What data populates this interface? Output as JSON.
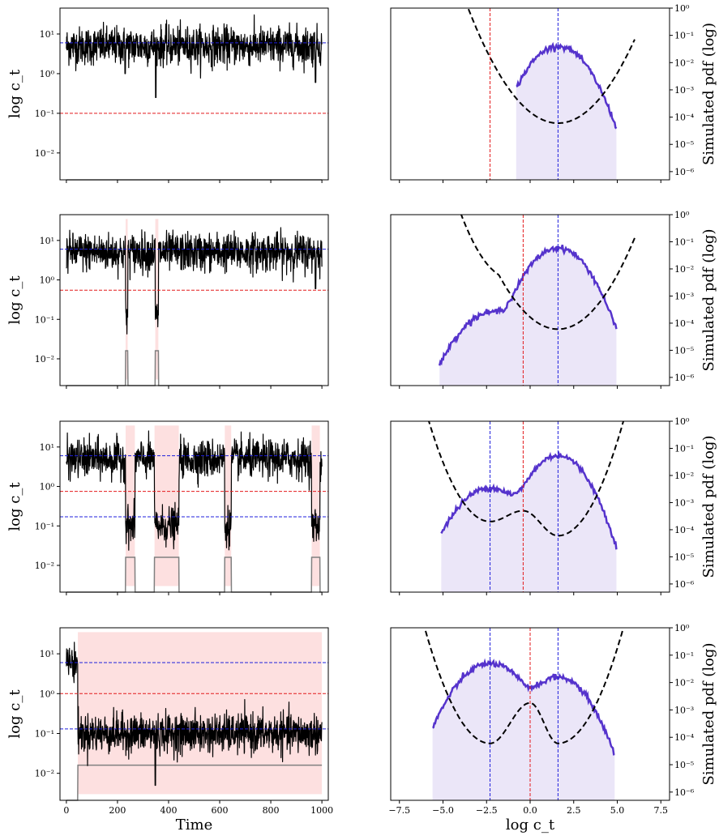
{
  "chart_data": {
    "type": "figure-grid",
    "left_column": {
      "type": "line",
      "ylabel": "log  c_t",
      "xlabel": "Time",
      "xlim": [
        -25,
        1025
      ],
      "x_ticks": [
        0,
        200,
        400,
        600,
        800,
        1000
      ],
      "y_scale": "log",
      "ylim": [
        0.0021,
        45
      ],
      "y_ticks": [
        0.01,
        0.1,
        1,
        10
      ],
      "y_tick_labels": [
        "10⁻²",
        "10⁻¹",
        "10⁰",
        "10¹"
      ],
      "series_colors": {
        "trajectory": "#000000",
        "regime_indicator": "#808080",
        "threshold": "#e41a1c",
        "attractors": "#1f1fdc",
        "shaded": "#fde0e0"
      }
    },
    "right_column": {
      "type": "line",
      "ylabel": "Simulated pdf (log)",
      "xlabel": "log  c_t",
      "xlim": [
        -8,
        8
      ],
      "x_ticks": [
        -7.5,
        -5.0,
        -2.5,
        0.0,
        2.5,
        5.0,
        7.5
      ],
      "x_tick_labels": [
        "−7.5",
        "−5.0",
        "−2.5",
        "0.0",
        "2.5",
        "5.0",
        "7.5"
      ],
      "y_scale": "log",
      "ylim": [
        5e-07,
        1
      ],
      "y_ticks": [
        1e-06,
        1e-05,
        0.0001,
        0.001,
        0.01,
        0.1,
        1
      ],
      "y_tick_labels": [
        "10⁻⁶",
        "10⁻⁵",
        "10⁻⁴",
        "10⁻³",
        "10⁻²",
        "10⁻¹",
        "10⁰"
      ],
      "series_colors": {
        "pdf": "#5533cc",
        "pdf_fill": "#ebe6f8",
        "potential": "#000000",
        "threshold": "#e41a1c",
        "attractors": "#1f1fdc"
      }
    },
    "rows": [
      {
        "left": {
          "threshold": 0.1,
          "attractors": [
            6.0
          ],
          "low_regime_level": 0.0021,
          "mean_high": 5.0,
          "mean_low": 0.12,
          "excursions": [],
          "dips": [
            [
              230,
              1.0
            ],
            [
              350,
              0.25
            ],
            [
              975,
              0.6
            ]
          ],
          "indicator_high": 0.016,
          "indicator_low": 0.0021
        },
        "right": {
          "threshold": -2.3,
          "attractors": [
            1.6
          ],
          "pdf_modes": [
            {
              "mu": 1.6,
              "sigma": 0.9,
              "peak": 0.04
            }
          ],
          "pdf_range": [
            -0.8,
            4.95
          ],
          "potential": {
            "center": 1.6,
            "min": 6e-05,
            "curv": 3.5
          }
        }
      },
      {
        "left": {
          "threshold": 0.55,
          "attractors": [
            6.0
          ],
          "mean_high": 5.0,
          "mean_low": 0.12,
          "excursions": [
            [
              232,
              240
            ],
            [
              348,
              360
            ]
          ],
          "dips": [
            [
              975,
              0.6
            ]
          ],
          "indicator_high": 0.016,
          "indicator_low": 0.0021
        },
        "right": {
          "threshold": -0.4,
          "attractors": [
            1.6
          ],
          "pdf_modes": [
            {
              "mu": 1.6,
              "sigma": 0.9,
              "peak": 0.06
            },
            {
              "mu": -2.2,
              "sigma": 1.0,
              "peak": 0.00025
            }
          ],
          "pdf_range": [
            -5.2,
            4.95
          ],
          "potential": {
            "center": 1.6,
            "min": 6e-05,
            "curv": 3.2,
            "bump_at": -0.4,
            "bump": 0.0012
          }
        }
      },
      {
        "left": {
          "threshold": 0.75,
          "attractors": [
            6.0,
            0.17
          ],
          "mean_high": 5.0,
          "mean_low": 0.1,
          "excursions": [
            [
              232,
              268
            ],
            [
              345,
              440
            ],
            [
              620,
              645
            ],
            [
              960,
              992
            ]
          ],
          "dips": [],
          "indicator_high": 0.016,
          "indicator_low": 0.0021
        },
        "right": {
          "threshold": -0.4,
          "attractors": [
            -2.3,
            1.6
          ],
          "pdf_modes": [
            {
              "mu": 1.6,
              "sigma": 0.85,
              "peak": 0.055
            },
            {
              "mu": -2.3,
              "sigma": 1.0,
              "peak": 0.0035
            }
          ],
          "pdf_range": [
            -5.1,
            4.95
          ],
          "potential": {
            "left_min_at": -2.3,
            "right_min_at": 1.6,
            "barrier_at": -0.4,
            "left_min": 0.0002,
            "right_min": 6e-05,
            "barrier": 0.0005
          }
        }
      },
      {
        "left": {
          "threshold": 1.0,
          "attractors": [
            6.0,
            0.13
          ],
          "mean_high": 6.0,
          "mean_low": 0.1,
          "excursions": [
            [
              45,
              1000
            ]
          ],
          "dips": [
            [
              348,
              0.005
            ]
          ],
          "indicator_high": 0.016,
          "indicator_low": 0.0021
        },
        "right": {
          "threshold": 0.0,
          "attractors": [
            -2.3,
            1.6
          ],
          "pdf_modes": [
            {
              "mu": 1.6,
              "sigma": 0.9,
              "peak": 0.016
            },
            {
              "mu": -2.3,
              "sigma": 1.0,
              "peak": 0.05
            }
          ],
          "pdf_range": [
            -5.6,
            4.85
          ],
          "potential": {
            "left_min_at": -2.3,
            "right_min_at": 1.6,
            "barrier_at": 0.0,
            "left_min": 6e-05,
            "right_min": 6e-05,
            "barrier": 0.0018
          }
        }
      }
    ]
  }
}
